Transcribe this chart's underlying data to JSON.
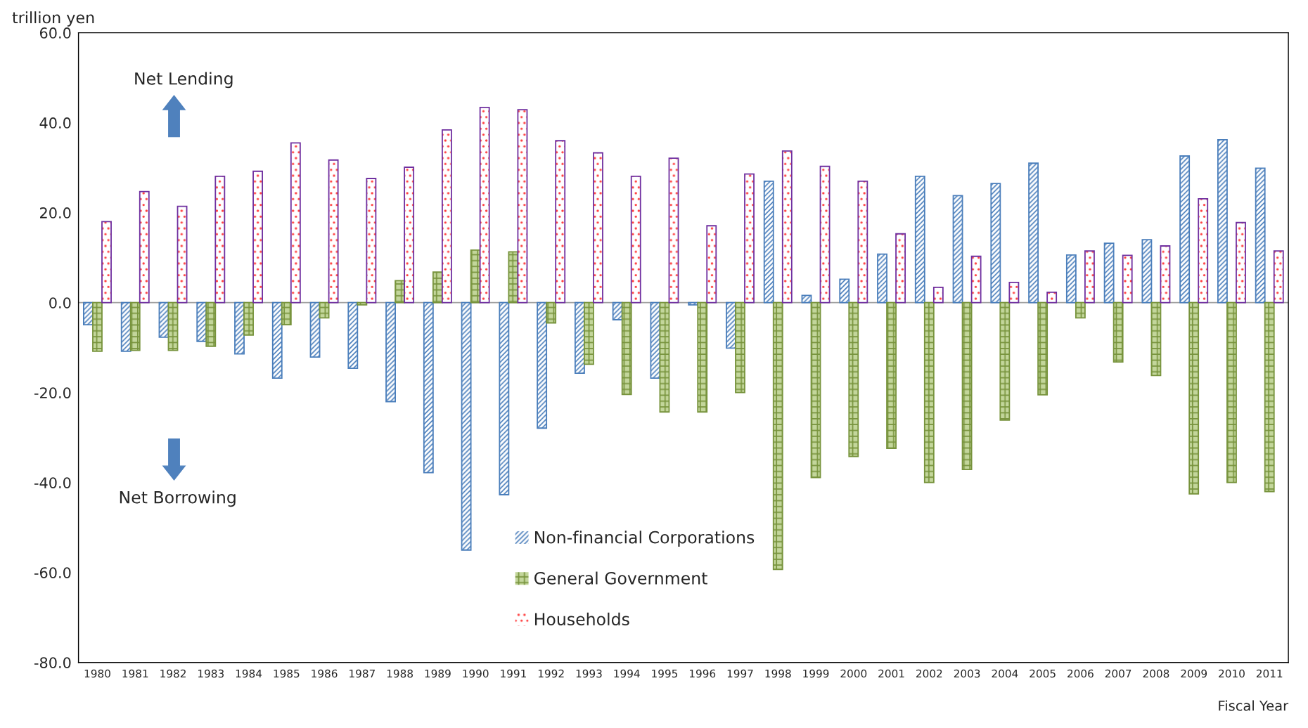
{
  "chart_data": {
    "type": "bar",
    "ylabel": "trillion yen",
    "xlabel": "Fiscal Year",
    "categories": [
      "1980",
      "1981",
      "1982",
      "1983",
      "1984",
      "1985",
      "1986",
      "1987",
      "1988",
      "1989",
      "1990",
      "1991",
      "1992",
      "1993",
      "1994",
      "1995",
      "1996",
      "1997",
      "1998",
      "1999",
      "2000",
      "2001",
      "2002",
      "2003",
      "2004",
      "2005",
      "2006",
      "2007",
      "2008",
      "2009",
      "2010",
      "2011"
    ],
    "series": [
      {
        "name": "Non-financial Corporations",
        "color": "#4a7ebb",
        "values": [
          -4.9,
          -10.8,
          -7.7,
          -8.6,
          -11.4,
          -16.8,
          -12.1,
          -14.6,
          -22.0,
          -37.8,
          -55.0,
          -42.7,
          -27.9,
          -15.7,
          -3.8,
          -16.8,
          -0.5,
          -10.1,
          27.0,
          1.6,
          5.2,
          10.8,
          28.1,
          23.8,
          26.5,
          31.0,
          10.6,
          13.2,
          14.0,
          32.6,
          36.2,
          29.9
        ]
      },
      {
        "name": "General Government",
        "color": "#77933c",
        "values": [
          -10.8,
          -10.6,
          -10.6,
          -9.7,
          -7.2,
          -4.9,
          -3.4,
          -0.5,
          4.9,
          6.8,
          11.7,
          11.3,
          -4.5,
          -13.7,
          -20.4,
          -24.3,
          -24.3,
          -20.0,
          -59.3,
          -38.9,
          -34.2,
          -32.4,
          -40.0,
          -37.1,
          -26.1,
          -20.5,
          -3.4,
          -13.2,
          -16.2,
          -42.5,
          -40.0,
          -42.0
        ]
      },
      {
        "name": "Households",
        "color": "#7030a0",
        "values": [
          18.0,
          24.7,
          21.4,
          28.1,
          29.2,
          35.5,
          31.7,
          27.6,
          30.1,
          38.4,
          43.4,
          42.9,
          36.0,
          33.3,
          28.1,
          32.1,
          17.1,
          28.6,
          33.7,
          30.3,
          27.0,
          15.3,
          3.4,
          10.3,
          4.5,
          2.3,
          11.5,
          10.5,
          12.6,
          23.1,
          17.8,
          11.5
        ]
      }
    ],
    "ylim": [
      -80,
      60
    ],
    "yticks": [
      {
        "value": -80,
        "label": "-80.0"
      },
      {
        "value": -60,
        "label": "-60.0"
      },
      {
        "value": -40,
        "label": "-40.0"
      },
      {
        "value": -20,
        "label": "-20.0"
      },
      {
        "value": 0,
        "label": "0.0"
      },
      {
        "value": 20,
        "label": "20.0"
      },
      {
        "value": 40,
        "label": "40.0"
      },
      {
        "value": 60,
        "label": "60.0"
      }
    ],
    "ref_lines": [
      {
        "axis": "y",
        "value": 0,
        "color": "#a0a0a0"
      }
    ],
    "annotations": [
      "Net Lending",
      "Net Borrowing"
    ],
    "grid": false,
    "legend": "bottom"
  }
}
